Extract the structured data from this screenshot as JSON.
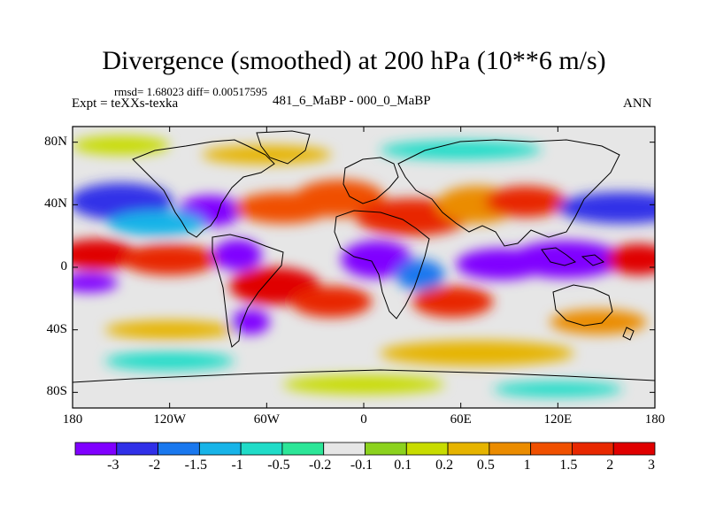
{
  "title": "Divergence (smoothed) at 200 hPa (10**6 m/s)",
  "stats_text": "rmsd= 1.68023 diff= 0.00517595",
  "experiment_text": "Expt = teXXs-texka",
  "subtitle": "481_6_MaBP - 000_0_MaBP",
  "season": "ANN",
  "map": {
    "projection": "cylindrical-equidistant",
    "lon_range": [
      -180,
      180
    ],
    "lat_range": [
      -90,
      90
    ],
    "lat_ticks": [
      {
        "value": 80,
        "label": "80N"
      },
      {
        "value": 40,
        "label": "40N"
      },
      {
        "value": 0,
        "label": "0"
      },
      {
        "value": -40,
        "label": "40S"
      },
      {
        "value": -80,
        "label": "80S"
      }
    ],
    "lon_ticks": [
      {
        "value": -180,
        "label": "180"
      },
      {
        "value": -120,
        "label": "120W"
      },
      {
        "value": -60,
        "label": "60W"
      },
      {
        "value": 0,
        "label": "0"
      },
      {
        "value": 60,
        "label": "60E"
      },
      {
        "value": 120,
        "label": "120E"
      },
      {
        "value": 180,
        "label": "180"
      }
    ]
  },
  "colorbar": {
    "colors": [
      "#8000ff",
      "#3030e8",
      "#1a78ee",
      "#18b4e8",
      "#20dcc8",
      "#2ce698",
      "#e6e6e6",
      "#8cd21e",
      "#c8dc00",
      "#e6b400",
      "#eb8c00",
      "#f05000",
      "#e82800",
      "#e00000"
    ],
    "labels": [
      "-3",
      "-2",
      "-1.5",
      "-1",
      "-0.5",
      "-0.2",
      "-0.1",
      "0.1",
      "0.2",
      "0.5",
      "1",
      "1.5",
      "2",
      "3"
    ]
  },
  "blobs": [
    {
      "lon": -150,
      "lat": 42,
      "rx": 32,
      "ry": 12,
      "level": -2
    },
    {
      "lon": -95,
      "lat": 36,
      "rx": 20,
      "ry": 10,
      "level": -2.5
    },
    {
      "lon": -128,
      "lat": 28,
      "rx": 30,
      "ry": 8,
      "level": -1
    },
    {
      "lon": -50,
      "lat": 38,
      "rx": 30,
      "ry": 10,
      "level": 1.5
    },
    {
      "lon": -15,
      "lat": 44,
      "rx": 28,
      "ry": 12,
      "level": 1.5
    },
    {
      "lon": 30,
      "lat": 32,
      "rx": 35,
      "ry": 12,
      "level": 2.5
    },
    {
      "lon": 70,
      "lat": 40,
      "rx": 25,
      "ry": 12,
      "level": 1
    },
    {
      "lon": 100,
      "lat": 42,
      "rx": 25,
      "ry": 10,
      "level": 2.5
    },
    {
      "lon": 160,
      "lat": 38,
      "rx": 40,
      "ry": 10,
      "level": -2
    },
    {
      "lon": -60,
      "lat": 72,
      "rx": 40,
      "ry": 6,
      "level": 0.5
    },
    {
      "lon": 60,
      "lat": 75,
      "rx": 50,
      "ry": 6,
      "level": -0.5
    },
    {
      "lon": -150,
      "lat": 78,
      "rx": 30,
      "ry": 6,
      "level": 0.3
    },
    {
      "lon": -165,
      "lat": 8,
      "rx": 25,
      "ry": 10,
      "level": 3
    },
    {
      "lon": -120,
      "lat": 5,
      "rx": 30,
      "ry": 10,
      "level": 2
    },
    {
      "lon": -78,
      "lat": 8,
      "rx": 15,
      "ry": 10,
      "level": -3
    },
    {
      "lon": -55,
      "lat": -12,
      "rx": 28,
      "ry": 12,
      "level": 3
    },
    {
      "lon": -20,
      "lat": -22,
      "rx": 25,
      "ry": 10,
      "level": 2
    },
    {
      "lon": 8,
      "lat": 5,
      "rx": 22,
      "ry": 12,
      "level": -3
    },
    {
      "lon": 35,
      "lat": -5,
      "rx": 15,
      "ry": 10,
      "level": -1.5
    },
    {
      "lon": 55,
      "lat": -22,
      "rx": 25,
      "ry": 10,
      "level": 2
    },
    {
      "lon": 85,
      "lat": 2,
      "rx": 28,
      "ry": 10,
      "level": -3
    },
    {
      "lon": 125,
      "lat": 5,
      "rx": 35,
      "ry": 12,
      "level": -3
    },
    {
      "lon": 170,
      "lat": 5,
      "rx": 20,
      "ry": 10,
      "level": 3
    },
    {
      "lon": 145,
      "lat": -35,
      "rx": 30,
      "ry": 8,
      "level": 1
    },
    {
      "lon": -170,
      "lat": -10,
      "rx": 18,
      "ry": 6,
      "level": -3
    },
    {
      "lon": -70,
      "lat": -35,
      "rx": 12,
      "ry": 8,
      "level": -2.5
    },
    {
      "lon": -120,
      "lat": -40,
      "rx": 40,
      "ry": 6,
      "level": 0.5
    },
    {
      "lon": 70,
      "lat": -55,
      "rx": 60,
      "ry": 8,
      "level": 0.5
    },
    {
      "lon": -120,
      "lat": -60,
      "rx": 40,
      "ry": 6,
      "level": -0.5
    },
    {
      "lon": 0,
      "lat": -75,
      "rx": 50,
      "ry": 6,
      "level": 0.3
    },
    {
      "lon": 120,
      "lat": -78,
      "rx": 40,
      "ry": 5,
      "level": -0.5
    }
  ]
}
